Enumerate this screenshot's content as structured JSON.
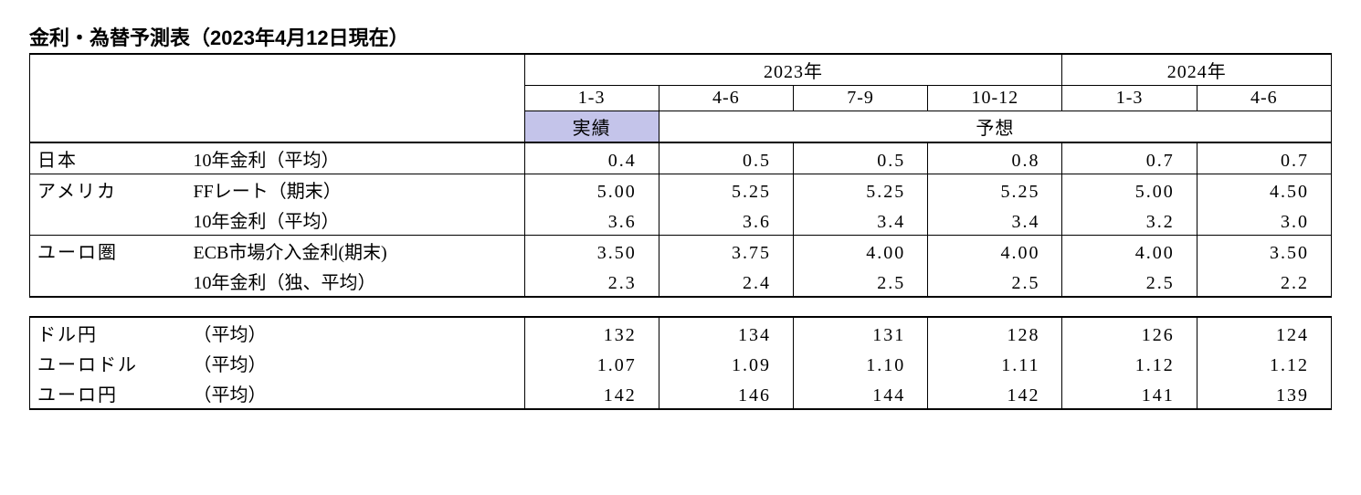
{
  "title": "金利・為替予測表（2023年4月12日現在）",
  "header": {
    "y2023": "2023年",
    "y2024": "2024年",
    "quarters": [
      "1-3",
      "4-6",
      "7-9",
      "10-12",
      "1-3",
      "4-6"
    ],
    "actual": "実績",
    "forecast": "予想"
  },
  "rates": {
    "japan": {
      "region": "日本",
      "r1": {
        "metric": "10年金利（平均）",
        "v": [
          "0.4",
          "0.5",
          "0.5",
          "0.8",
          "0.7",
          "0.7"
        ]
      }
    },
    "us": {
      "region": "アメリカ",
      "r1": {
        "metric": "FFレート（期末）",
        "v": [
          "5.00",
          "5.25",
          "5.25",
          "5.25",
          "5.00",
          "4.50"
        ]
      },
      "r2": {
        "metric": "10年金利（平均）",
        "v": [
          "3.6",
          "3.6",
          "3.4",
          "3.4",
          "3.2",
          "3.0"
        ]
      }
    },
    "eu": {
      "region": "ユーロ圏",
      "r1": {
        "metric": "ECB市場介入金利(期末)",
        "v": [
          "3.50",
          "3.75",
          "4.00",
          "4.00",
          "4.00",
          "3.50"
        ]
      },
      "r2": {
        "metric": "10年金利（独、平均）",
        "v": [
          "2.3",
          "2.4",
          "2.5",
          "2.5",
          "2.5",
          "2.2"
        ]
      }
    }
  },
  "fx": {
    "r1": {
      "region": "ドル円",
      "metric": "（平均）",
      "v": [
        "132",
        "134",
        "131",
        "128",
        "126",
        "124"
      ]
    },
    "r2": {
      "region": "ユーロドル",
      "metric": "（平均）",
      "v": [
        "1.07",
        "1.09",
        "1.10",
        "1.11",
        "1.12",
        "1.12"
      ]
    },
    "r3": {
      "region": "ユーロ円",
      "metric": "（平均）",
      "v": [
        "142",
        "146",
        "144",
        "142",
        "141",
        "139"
      ]
    }
  },
  "colors": {
    "highlight": "#c4c4ea",
    "border": "#000000",
    "background": "#ffffff"
  }
}
